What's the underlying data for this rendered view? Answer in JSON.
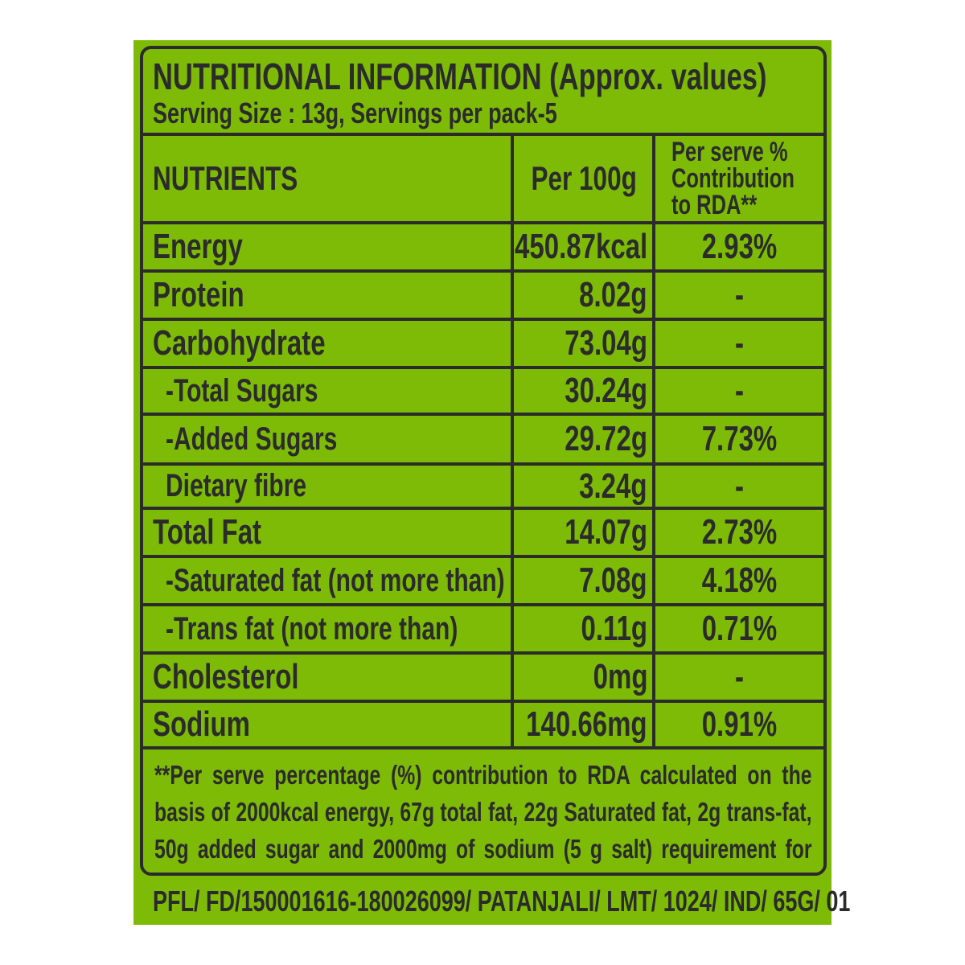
{
  "title": "NUTRITIONAL INFORMATION (Approx. values)",
  "serving": "Serving Size : 13g, Servings per pack-5",
  "headers": {
    "nutrients": "NUTRIENTS",
    "per100g": "Per 100g",
    "rda_line1": "Per serve %",
    "rda_line2": "Contribution",
    "rda_line3": "to RDA**"
  },
  "rows": [
    {
      "name": "Energy",
      "per100g": "450.87kcal",
      "rda": "2.93%",
      "sub": false
    },
    {
      "name": "Protein",
      "per100g": "8.02g",
      "rda": "-",
      "sub": false
    },
    {
      "name": "Carbohydrate",
      "per100g": "73.04g",
      "rda": "-",
      "sub": false
    },
    {
      "name": "-Total Sugars",
      "per100g": "30.24g",
      "rda": "-",
      "sub": true
    },
    {
      "name": "-Added Sugars",
      "per100g": "29.72g",
      "rda": "7.73%",
      "sub": true
    },
    {
      "name": "Dietary fibre",
      "per100g": "3.24g",
      "rda": "-",
      "sub": true
    },
    {
      "name": "Total Fat",
      "per100g": "14.07g",
      "rda": "2.73%",
      "sub": false
    },
    {
      "name": "-Saturated fat (not more than)",
      "per100g": "7.08g",
      "rda": "4.18%",
      "sub": true
    },
    {
      "name": "-Trans fat (not more than)",
      "per100g": "0.11g",
      "rda": "0.71%",
      "sub": true
    },
    {
      "name": "Cholesterol",
      "per100g": "0mg",
      "rda": "-",
      "sub": false
    },
    {
      "name": "Sodium",
      "per100g": "140.66mg",
      "rda": "0.91%",
      "sub": false
    }
  ],
  "footnote": "**Per serve percentage (%) contribution to RDA calculated on the basis of 2000kcal energy, 67g total fat, 22g Saturated fat, 2g trans-fat, 50g added sugar and 2000mg of sodium (5 g salt) requirement for average adult per day.",
  "code": "PFL/ FD/150001616-180026099/ PATANJALI/ LMT/ 1024/ IND/ 65G/ 01",
  "colors": {
    "background": "#7ebb06",
    "text": "#2b2b2b"
  }
}
